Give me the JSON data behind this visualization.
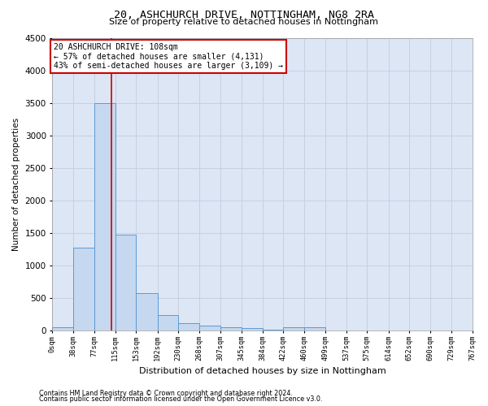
{
  "title": "20, ASHCHURCH DRIVE, NOTTINGHAM, NG8 2RA",
  "subtitle": "Size of property relative to detached houses in Nottingham",
  "xlabel": "Distribution of detached houses by size in Nottingham",
  "ylabel": "Number of detached properties",
  "bar_color": "#c5d8ef",
  "bar_edge_color": "#5b9bd5",
  "bin_edges": [
    0,
    38,
    77,
    115,
    153,
    192,
    230,
    268,
    307,
    345,
    384,
    422,
    460,
    499,
    537,
    575,
    614,
    652,
    690,
    729,
    767
  ],
  "bar_heights": [
    50,
    1280,
    3500,
    1480,
    570,
    240,
    115,
    80,
    50,
    35,
    20,
    50,
    55,
    5,
    5,
    5,
    5,
    5,
    5,
    5
  ],
  "tick_labels": [
    "0sqm",
    "38sqm",
    "77sqm",
    "115sqm",
    "153sqm",
    "192sqm",
    "230sqm",
    "268sqm",
    "307sqm",
    "345sqm",
    "384sqm",
    "422sqm",
    "460sqm",
    "499sqm",
    "537sqm",
    "575sqm",
    "614sqm",
    "652sqm",
    "690sqm",
    "729sqm",
    "767sqm"
  ],
  "ylim": [
    0,
    4500
  ],
  "xlim": [
    0,
    767
  ],
  "property_size": 108,
  "vline_color": "#cc0000",
  "annotation_line1": "20 ASHCHURCH DRIVE: 108sqm",
  "annotation_line2": "← 57% of detached houses are smaller (4,131)",
  "annotation_line3": "43% of semi-detached houses are larger (3,109) →",
  "annotation_box_color": "#ffffff",
  "annotation_box_edge": "#cc0000",
  "footer1": "Contains HM Land Registry data © Crown copyright and database right 2024.",
  "footer2": "Contains public sector information licensed under the Open Government Licence v3.0.",
  "grid_color": "#c8d0e0",
  "bg_color": "#dce6f5",
  "yticks": [
    0,
    500,
    1000,
    1500,
    2000,
    2500,
    3000,
    3500,
    4000,
    4500
  ]
}
